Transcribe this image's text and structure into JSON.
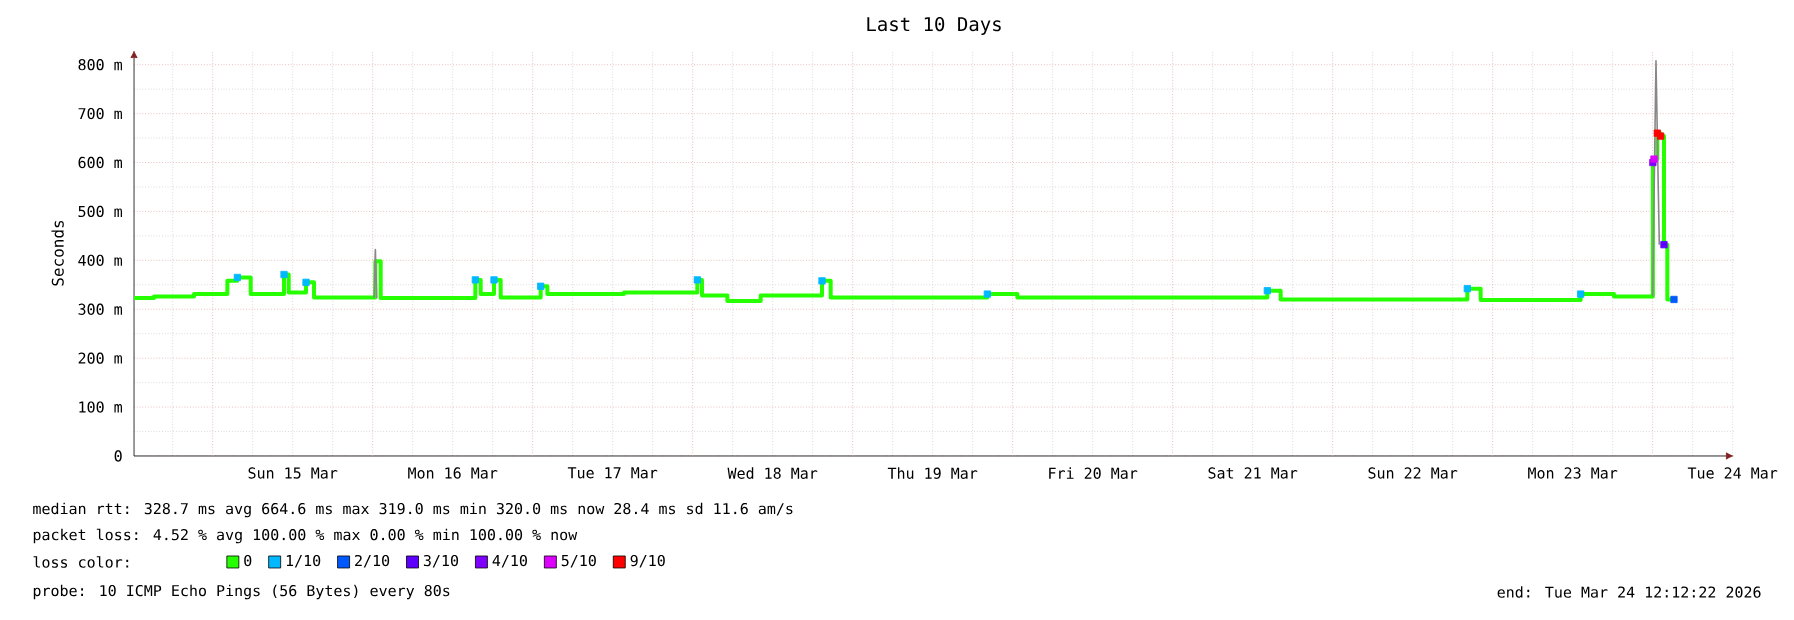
{
  "chart_data": {
    "type": "step",
    "title": "Last 10 Days",
    "ylabel": "Seconds",
    "xlim": [
      "2026-03-14T12:12",
      "2026-03-24T12:12"
    ],
    "xticks": [
      {
        "value": "2026-03-15T12:00",
        "label": "Sun 15 Mar"
      },
      {
        "value": "2026-03-16T12:00",
        "label": "Mon 16 Mar"
      },
      {
        "value": "2026-03-17T12:00",
        "label": "Tue 17 Mar"
      },
      {
        "value": "2026-03-18T12:00",
        "label": "Wed 18 Mar"
      },
      {
        "value": "2026-03-19T12:00",
        "label": "Thu 19 Mar"
      },
      {
        "value": "2026-03-20T12:00",
        "label": "Fri 20 Mar"
      },
      {
        "value": "2026-03-21T12:00",
        "label": "Sat 21 Mar"
      },
      {
        "value": "2026-03-22T12:00",
        "label": "Sun 22 Mar"
      },
      {
        "value": "2026-03-23T12:00",
        "label": "Mon 23 Mar"
      },
      {
        "value": "2026-03-24T12:00",
        "label": "Tue 24 Mar"
      }
    ],
    "ylim": [
      0,
      830
    ],
    "yticks": [
      0,
      {
        "value": 100,
        "label": "100 m"
      },
      {
        "value": 200,
        "label": "200 m"
      },
      {
        "value": 300,
        "label": "300 m"
      },
      {
        "value": 400,
        "label": "400 m"
      },
      {
        "value": 500,
        "label": "500 m"
      },
      {
        "value": 600,
        "label": "600 m"
      },
      {
        "value": 700,
        "label": "700 m"
      },
      {
        "value": 800,
        "label": "800 m"
      }
    ],
    "grid": true,
    "legend": "bottom",
    "legend_title": "loss color:",
    "series": [
      {
        "name": "0",
        "color": "#26ff00",
        "x": [
          "2026-03-14T12:12",
          "2026-03-14T15:12",
          "2026-03-14T21:12",
          "2026-03-15T02:12",
          "2026-03-15T03:42",
          "2026-03-15T05:42",
          "2026-03-15T10:42",
          "2026-03-15T11:24",
          "2026-03-15T14:00",
          "2026-03-15T15:12",
          "2026-03-16T00:24",
          "2026-03-16T01:12",
          "2026-03-16T15:24",
          "2026-03-16T16:12",
          "2026-03-16T18:12",
          "2026-03-16T19:12",
          "2026-03-17T01:12",
          "2026-03-17T02:12",
          "2026-03-17T13:42",
          "2026-03-18T00:42",
          "2026-03-18T01:24",
          "2026-03-18T05:12",
          "2026-03-18T10:12",
          "2026-03-18T19:24",
          "2026-03-18T20:42",
          "2026-03-19T20:12",
          "2026-03-20T00:42",
          "2026-03-21T14:12",
          "2026-03-21T16:12",
          "2026-03-22T20:12",
          "2026-03-22T22:12",
          "2026-03-23T13:12",
          "2026-03-23T18:12",
          "2026-03-24T00:02",
          "2026-03-24T00:12",
          "2026-03-24T00:42",
          "2026-03-24T01:12",
          "2026-03-24T01:42",
          "2026-03-24T02:12",
          "2026-03-24T03:12",
          "2026-03-24T03:30"
        ],
        "values": [
          323,
          326,
          331,
          358,
          365,
          331,
          371,
          334,
          355,
          324,
          398,
          323,
          360,
          331,
          360,
          324,
          347,
          331,
          334,
          360,
          328,
          317,
          328,
          358,
          324,
          331,
          324,
          338,
          320,
          342,
          319,
          331,
          326,
          600,
          607,
          660,
          654,
          432,
          320,
          320,
          320
        ]
      },
      {
        "name": "1/10",
        "type": "scatter",
        "marker": "square",
        "color": "#00b8ff",
        "x": [
          "2026-03-15T03:42",
          "2026-03-15T10:42",
          "2026-03-15T14:00",
          "2026-03-16T15:24",
          "2026-03-16T18:12",
          "2026-03-17T01:12",
          "2026-03-18T00:42",
          "2026-03-18T19:24",
          "2026-03-19T20:12",
          "2026-03-21T14:12",
          "2026-03-22T20:12",
          "2026-03-23T13:12"
        ],
        "values": [
          365,
          371,
          355,
          360,
          360,
          347,
          360,
          358,
          331,
          338,
          342,
          331
        ]
      },
      {
        "name": "2/10",
        "type": "scatter",
        "marker": "square",
        "color": "#0059ff",
        "x": [
          "2026-03-24T03:12"
        ],
        "values": [
          320
        ]
      },
      {
        "name": "3/10",
        "type": "scatter",
        "marker": "square",
        "color": "#5e00ff",
        "x": [
          "2026-03-24T01:42"
        ],
        "values": [
          432
        ]
      },
      {
        "name": "4/10",
        "type": "scatter",
        "marker": "square",
        "color": "#7e00ff",
        "x": [
          "2026-03-24T00:02"
        ],
        "values": [
          600
        ]
      },
      {
        "name": "5/10",
        "type": "scatter",
        "marker": "square",
        "color": "#dd00ff",
        "x": [
          "2026-03-24T00:12"
        ],
        "values": [
          607
        ]
      },
      {
        "name": "9/10",
        "type": "scatter",
        "marker": "square",
        "color": "#ff0000",
        "x": [
          "2026-03-24T00:42",
          "2026-03-24T01:12"
        ],
        "values": [
          660,
          654
        ]
      },
      {
        "type": "line",
        "color": "#888888",
        "x": [
          "2026-03-16T00:12",
          "2026-03-16T00:24",
          "2026-03-16T00:36",
          "2026-03-20T00:00",
          "2026-03-24T00:00",
          "2026-03-24T00:30",
          "2026-03-24T01:00"
        ],
        "values": [
          323,
          422,
          323,
          null,
          326,
          808,
          432
        ]
      }
    ],
    "annotations": [
      "median rtt:  328.7 ms avg  664.6 ms max  319.0 ms min  320.0 ms now  28.4 ms sd  11.6   am/s",
      "packet loss: 4.52 % avg  100.00 % max  0.00 % min  100.00 % now",
      "probe:       10 ICMP Echo Pings (56 Bytes) every 80s",
      "end: Tue Mar 24 12:12:22 2026"
    ]
  }
}
